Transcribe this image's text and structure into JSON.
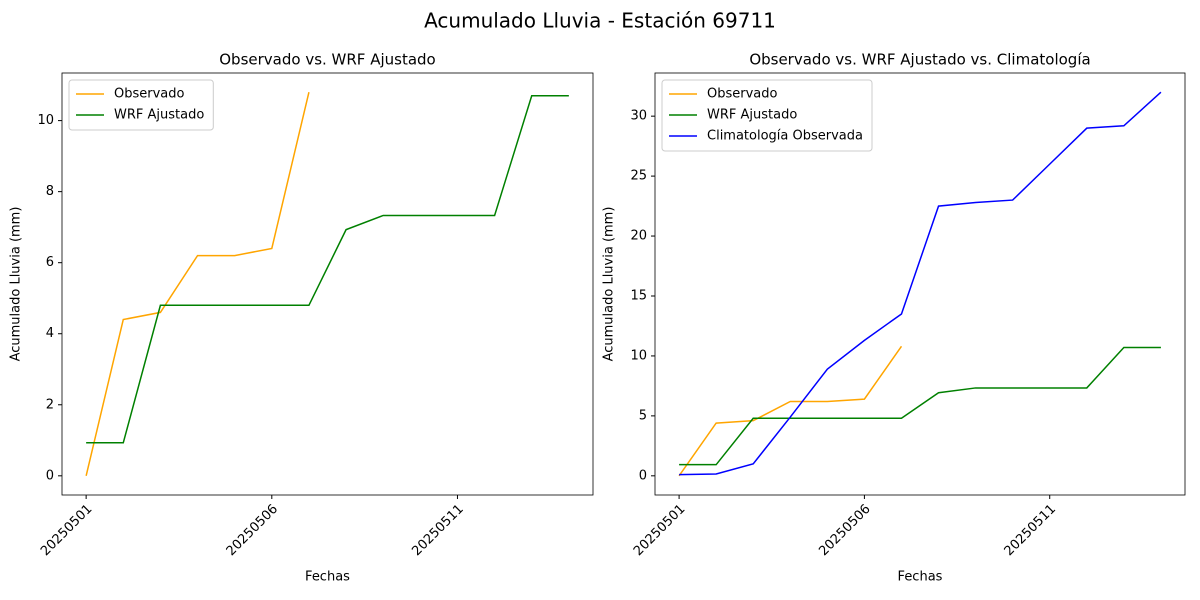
{
  "title": "Acumulado Lluvia - Estación 69711",
  "chart_data": [
    {
      "type": "line",
      "title": "Observado vs. WRF Ajustado",
      "xlabel": "Fechas",
      "ylabel": "Acumulado Lluvia (mm)",
      "x": [
        "2025-05-01",
        "2025-05-02",
        "2025-05-03",
        "2025-05-04",
        "2025-05-05",
        "2025-05-06",
        "2025-05-07",
        "2025-05-08",
        "2025-05-09",
        "2025-05-10",
        "2025-05-11",
        "2025-05-12",
        "2025-05-13",
        "2025-05-14"
      ],
      "xlim": [
        "2025-04-30T08:24:00Z",
        "2025-05-14T15:36:00Z"
      ],
      "xticks": [
        {
          "value": "2025-05-01",
          "label": "20250501"
        },
        {
          "value": "2025-05-06",
          "label": "20250506"
        },
        {
          "value": "2025-05-11",
          "label": "20250511"
        }
      ],
      "ylim": [
        -0.54,
        11.34
      ],
      "yticks": [
        0,
        2,
        4,
        6,
        8,
        10
      ],
      "legend": "upper left",
      "series": [
        {
          "name": "Observado",
          "color": "orange",
          "values": [
            0,
            4.4,
            4.6,
            6.2,
            6.2,
            6.4,
            10.8,
            null,
            null,
            null,
            null,
            null,
            null,
            null
          ]
        },
        {
          "name": "WRF Ajustado",
          "color": "green",
          "values": [
            0.93,
            0.93,
            4.8,
            4.8,
            4.8,
            4.8,
            4.8,
            6.93,
            7.33,
            7.33,
            7.33,
            7.33,
            10.7,
            10.7
          ]
        }
      ]
    },
    {
      "type": "line",
      "title": "Observado vs. WRF Ajustado vs. Climatología",
      "xlabel": "Fechas",
      "ylabel": "Acumulado Lluvia (mm)",
      "x": [
        "2025-05-01",
        "2025-05-02",
        "2025-05-03",
        "2025-05-04",
        "2025-05-05",
        "2025-05-06",
        "2025-05-07",
        "2025-05-08",
        "2025-05-09",
        "2025-05-10",
        "2025-05-11",
        "2025-05-12",
        "2025-05-13",
        "2025-05-14"
      ],
      "xlim": [
        "2025-04-30T08:24:00Z",
        "2025-05-14T15:36:00Z"
      ],
      "xticks": [
        {
          "value": "2025-05-01",
          "label": "20250501"
        },
        {
          "value": "2025-05-06",
          "label": "20250506"
        },
        {
          "value": "2025-05-11",
          "label": "20250511"
        }
      ],
      "ylim": [
        -1.6,
        33.6
      ],
      "yticks": [
        0,
        5,
        10,
        15,
        20,
        25,
        30
      ],
      "legend": "upper left",
      "series": [
        {
          "name": "Observado",
          "color": "orange",
          "values": [
            0,
            4.4,
            4.6,
            6.2,
            6.2,
            6.4,
            10.8,
            null,
            null,
            null,
            null,
            null,
            null,
            null
          ]
        },
        {
          "name": "WRF Ajustado",
          "color": "green",
          "values": [
            0.93,
            0.93,
            4.8,
            4.8,
            4.8,
            4.8,
            4.8,
            6.93,
            7.33,
            7.33,
            7.33,
            7.33,
            10.7,
            10.7
          ]
        },
        {
          "name": "Climatología Observada",
          "color": "blue",
          "values": [
            0.1,
            0.15,
            1.0,
            4.9,
            8.9,
            11.3,
            13.5,
            22.5,
            22.8,
            23.0,
            26.0,
            29.0,
            29.2,
            32.0
          ]
        }
      ]
    }
  ]
}
